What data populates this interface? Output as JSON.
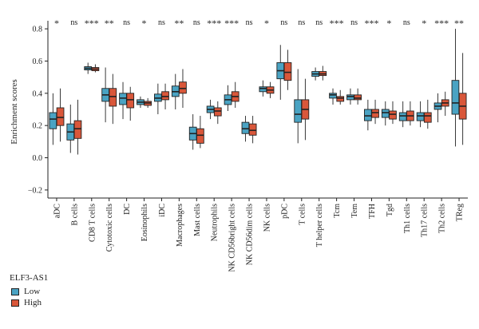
{
  "chart_data": {
    "type": "box",
    "ylabel": "Enrichment scores",
    "xlabel": "",
    "ylim": [
      -0.25,
      0.85
    ],
    "yticks": [
      -0.2,
      0.0,
      0.2,
      0.4,
      0.6,
      0.8
    ],
    "ytick_labels": [
      "−0.2",
      "0.0",
      "0.2",
      "0.4",
      "0.6",
      "0.8"
    ],
    "legend": {
      "title": "ELF3-AS1",
      "placement": "bottom-left",
      "entries": [
        {
          "name": "Low",
          "color": "#4aa3c3"
        },
        {
          "name": "High",
          "color": "#d9573a"
        }
      ]
    },
    "categories": [
      "aDC",
      "B cells",
      "CD8 T cells",
      "Cytotoxic cells",
      "DC",
      "Eosinophils",
      "iDC",
      "Macrophages",
      "Mast cells",
      "Neutrophils",
      "NK CD56bright cells",
      "NK CD56dim cells",
      "NK cells",
      "pDC",
      "T cells",
      "T helper cells",
      "Tcm",
      "Tem",
      "TFH",
      "Tgd",
      "Th1 cells",
      "Th17 cells",
      "Th2 cells",
      "TReg"
    ],
    "significance": [
      "*",
      "ns",
      "***",
      "**",
      "ns",
      "*",
      "ns",
      "**",
      "ns",
      "***",
      "***",
      "ns",
      "*",
      "ns",
      "ns",
      "ns",
      "***",
      "ns",
      "***",
      "*",
      "ns",
      "*",
      "***",
      "**"
    ],
    "series": [
      {
        "name": "Low",
        "color": "#4aa3c3",
        "boxes": [
          {
            "low": 0.08,
            "q1": 0.18,
            "median": 0.24,
            "q3": 0.28,
            "high": 0.4
          },
          {
            "low": 0.03,
            "q1": 0.11,
            "median": 0.16,
            "q3": 0.21,
            "high": 0.33
          },
          {
            "low": 0.52,
            "q1": 0.545,
            "median": 0.555,
            "q3": 0.565,
            "high": 0.59
          },
          {
            "low": 0.22,
            "q1": 0.35,
            "median": 0.39,
            "q3": 0.43,
            "high": 0.56
          },
          {
            "low": 0.24,
            "q1": 0.33,
            "median": 0.37,
            "q3": 0.4,
            "high": 0.47
          },
          {
            "low": 0.31,
            "q1": 0.33,
            "median": 0.345,
            "q3": 0.36,
            "high": 0.38
          },
          {
            "low": 0.27,
            "q1": 0.35,
            "median": 0.37,
            "q3": 0.395,
            "high": 0.46
          },
          {
            "low": 0.3,
            "q1": 0.38,
            "median": 0.41,
            "q3": 0.445,
            "high": 0.52
          },
          {
            "low": 0.05,
            "q1": 0.11,
            "median": 0.15,
            "q3": 0.19,
            "high": 0.27
          },
          {
            "low": 0.24,
            "q1": 0.28,
            "median": 0.3,
            "q3": 0.32,
            "high": 0.36
          },
          {
            "low": 0.29,
            "q1": 0.33,
            "median": 0.36,
            "q3": 0.39,
            "high": 0.45
          },
          {
            "low": 0.1,
            "q1": 0.15,
            "median": 0.18,
            "q3": 0.22,
            "high": 0.26
          },
          {
            "low": 0.38,
            "q1": 0.41,
            "median": 0.43,
            "q3": 0.44,
            "high": 0.48
          },
          {
            "low": 0.36,
            "q1": 0.49,
            "median": 0.54,
            "q3": 0.59,
            "high": 0.7
          },
          {
            "low": 0.09,
            "q1": 0.22,
            "median": 0.27,
            "q3": 0.36,
            "high": 0.55
          },
          {
            "low": 0.48,
            "q1": 0.505,
            "median": 0.52,
            "q3": 0.535,
            "high": 0.56
          },
          {
            "low": 0.33,
            "q1": 0.37,
            "median": 0.39,
            "q3": 0.4,
            "high": 0.43
          },
          {
            "low": 0.33,
            "q1": 0.36,
            "median": 0.38,
            "q3": 0.39,
            "high": 0.43
          },
          {
            "low": 0.17,
            "q1": 0.23,
            "median": 0.26,
            "q3": 0.3,
            "high": 0.36
          },
          {
            "low": 0.2,
            "q1": 0.25,
            "median": 0.28,
            "q3": 0.3,
            "high": 0.35
          },
          {
            "low": 0.19,
            "q1": 0.23,
            "median": 0.26,
            "q3": 0.28,
            "high": 0.35
          },
          {
            "low": 0.19,
            "q1": 0.23,
            "median": 0.26,
            "q3": 0.28,
            "high": 0.35
          },
          {
            "low": 0.22,
            "q1": 0.3,
            "median": 0.32,
            "q3": 0.34,
            "high": 0.4
          },
          {
            "low": 0.07,
            "q1": 0.27,
            "median": 0.34,
            "q3": 0.48,
            "high": 0.8
          }
        ]
      },
      {
        "name": "High",
        "color": "#d9573a",
        "boxes": [
          {
            "low": 0.1,
            "q1": 0.2,
            "median": 0.25,
            "q3": 0.31,
            "high": 0.43
          },
          {
            "low": 0.02,
            "q1": 0.12,
            "median": 0.18,
            "q3": 0.23,
            "high": 0.36
          },
          {
            "low": 0.53,
            "q1": 0.54,
            "median": 0.55,
            "q3": 0.56,
            "high": 0.58
          },
          {
            "low": 0.21,
            "q1": 0.32,
            "median": 0.38,
            "q3": 0.43,
            "high": 0.52
          },
          {
            "low": 0.23,
            "q1": 0.31,
            "median": 0.36,
            "q3": 0.4,
            "high": 0.44
          },
          {
            "low": 0.31,
            "q1": 0.325,
            "median": 0.34,
            "q3": 0.35,
            "high": 0.37
          },
          {
            "low": 0.3,
            "q1": 0.36,
            "median": 0.38,
            "q3": 0.41,
            "high": 0.46
          },
          {
            "low": 0.31,
            "q1": 0.4,
            "median": 0.43,
            "q3": 0.47,
            "high": 0.55
          },
          {
            "low": 0.06,
            "q1": 0.09,
            "median": 0.14,
            "q3": 0.18,
            "high": 0.26
          },
          {
            "low": 0.21,
            "q1": 0.26,
            "median": 0.29,
            "q3": 0.31,
            "high": 0.35
          },
          {
            "low": 0.31,
            "q1": 0.35,
            "median": 0.38,
            "q3": 0.41,
            "high": 0.47
          },
          {
            "low": 0.09,
            "q1": 0.14,
            "median": 0.17,
            "q3": 0.21,
            "high": 0.26
          },
          {
            "low": 0.37,
            "q1": 0.4,
            "median": 0.42,
            "q3": 0.44,
            "high": 0.47
          },
          {
            "low": 0.42,
            "q1": 0.48,
            "median": 0.53,
            "q3": 0.59,
            "high": 0.67
          },
          {
            "low": 0.11,
            "q1": 0.24,
            "median": 0.3,
            "q3": 0.36,
            "high": 0.49
          },
          {
            "low": 0.48,
            "q1": 0.51,
            "median": 0.52,
            "q3": 0.535,
            "high": 0.57
          },
          {
            "low": 0.33,
            "q1": 0.35,
            "median": 0.37,
            "q3": 0.38,
            "high": 0.42
          },
          {
            "low": 0.33,
            "q1": 0.36,
            "median": 0.37,
            "q3": 0.39,
            "high": 0.43
          },
          {
            "low": 0.21,
            "q1": 0.25,
            "median": 0.28,
            "q3": 0.3,
            "high": 0.36
          },
          {
            "low": 0.21,
            "q1": 0.24,
            "median": 0.27,
            "q3": 0.29,
            "high": 0.35
          },
          {
            "low": 0.2,
            "q1": 0.23,
            "median": 0.26,
            "q3": 0.29,
            "high": 0.35
          },
          {
            "low": 0.18,
            "q1": 0.22,
            "median": 0.26,
            "q3": 0.28,
            "high": 0.36
          },
          {
            "low": 0.26,
            "q1": 0.32,
            "median": 0.34,
            "q3": 0.36,
            "high": 0.41
          },
          {
            "low": 0.08,
            "q1": 0.24,
            "median": 0.32,
            "q3": 0.4,
            "high": 0.65
          }
        ]
      }
    ]
  }
}
